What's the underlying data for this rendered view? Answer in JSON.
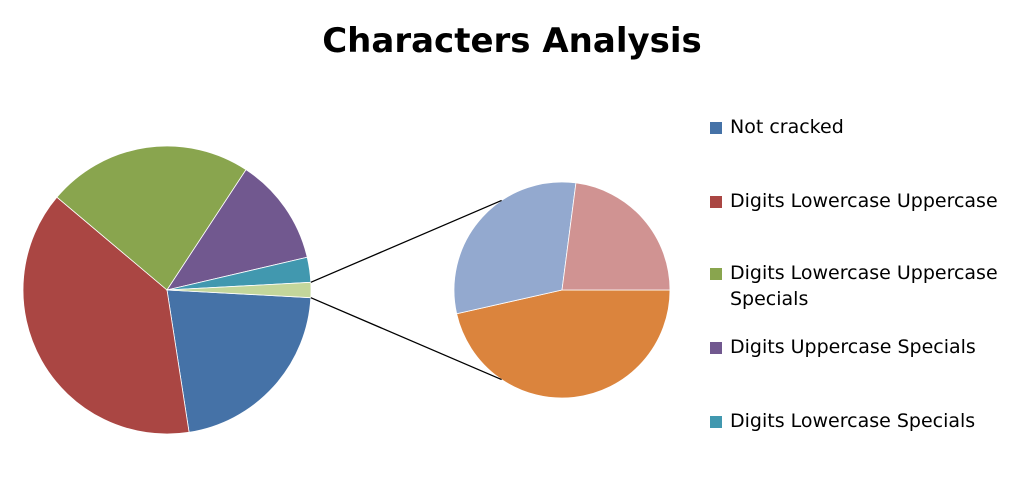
{
  "chart_data": {
    "type": "pie-of-pie",
    "title": "Characters Analysis",
    "categories": [
      "Not cracked",
      "Digits Lowercase Uppercase",
      "Digits Lowercase Uppercase Specials",
      "Digits Uppercase Specials",
      "Digits Lowercase Specials",
      null,
      null,
      null
    ],
    "values": [
      21.7,
      38.6,
      23.1,
      12.1,
      2.8,
      0.79,
      0.52,
      0.39
    ],
    "colors": [
      "#4572A7",
      "#AA4643",
      "#89A54E",
      "#71588F",
      "#4198AF",
      "#DB843D",
      "#93A9CF",
      "#D09392"
    ],
    "secondary_count": 3,
    "other_color": "#C3D69B",
    "legend": "right"
  }
}
